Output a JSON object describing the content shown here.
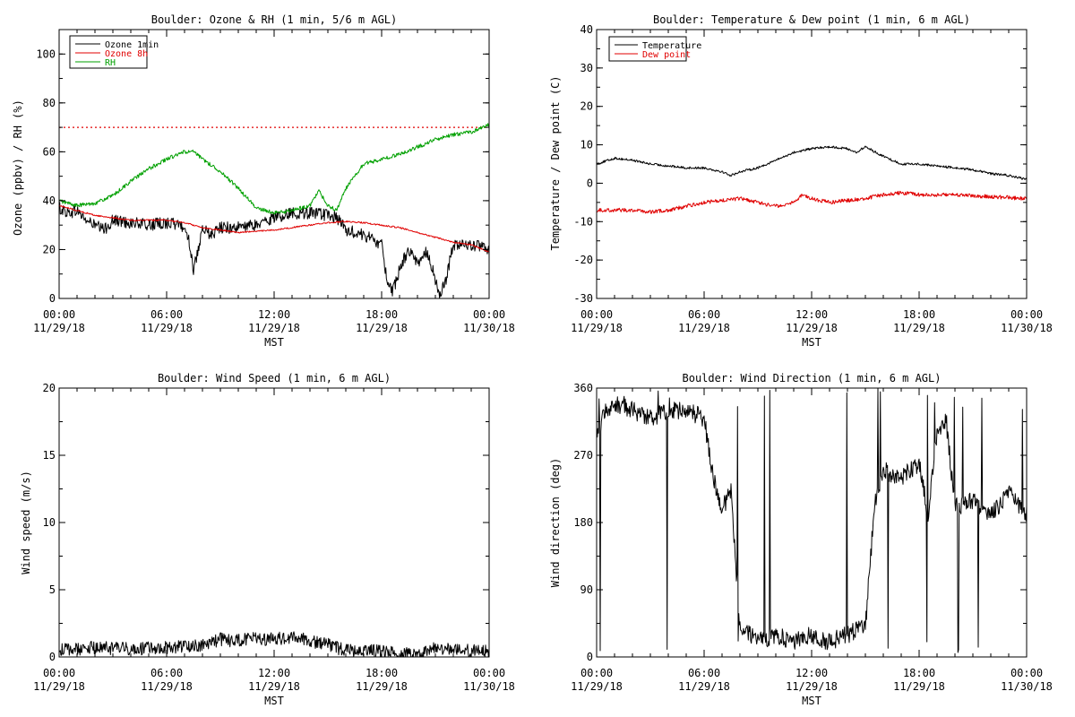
{
  "chart_data": [
    {
      "type": "line",
      "title": "Boulder: Ozone & RH (1 min, 5/6 m AGL)",
      "xlabel": "MST",
      "ylabel": "Ozone (ppbv) / RH (%)",
      "ylim": [
        0,
        110
      ],
      "yticks": [
        0,
        20,
        40,
        60,
        80,
        100
      ],
      "xticks": [
        {
          "hour": 0,
          "time": "00:00",
          "date": "11/29/18"
        },
        {
          "hour": 6,
          "time": "06:00",
          "date": "11/29/18"
        },
        {
          "hour": 12,
          "time": "12:00",
          "date": "11/29/18"
        },
        {
          "hour": 18,
          "time": "18:00",
          "date": "11/29/18"
        },
        {
          "hour": 24,
          "time": "00:00",
          "date": "11/30/18"
        }
      ],
      "xlim_hours": [
        0,
        24
      ],
      "legend": "top-left",
      "reference_line": {
        "y": 70,
        "color": "#e00000",
        "style": "dotted"
      },
      "series": [
        {
          "name": "Ozone 1min",
          "color": "#000000",
          "noise": 2.5,
          "points": [
            [
              0,
              37
            ],
            [
              0.5,
              35
            ],
            [
              1,
              36
            ],
            [
              1.5,
              32
            ],
            [
              2,
              30
            ],
            [
              2.5,
              28
            ],
            [
              3,
              32
            ],
            [
              4,
              31
            ],
            [
              5,
              30
            ],
            [
              6,
              31
            ],
            [
              6.8,
              30
            ],
            [
              7.2,
              26
            ],
            [
              7.5,
              12
            ],
            [
              7.8,
              20
            ],
            [
              8,
              28
            ],
            [
              8.5,
              26
            ],
            [
              9,
              29
            ],
            [
              10,
              29
            ],
            [
              11,
              30
            ],
            [
              12,
              33
            ],
            [
              13,
              35
            ],
            [
              14,
              35
            ],
            [
              15,
              34
            ],
            [
              15.5,
              33
            ],
            [
              16,
              28
            ],
            [
              17,
              26
            ],
            [
              17.5,
              24
            ],
            [
              18,
              22
            ],
            [
              18.3,
              8
            ],
            [
              18.6,
              2
            ],
            [
              19,
              12
            ],
            [
              19.5,
              20
            ],
            [
              20,
              14
            ],
            [
              20.5,
              20
            ],
            [
              21,
              8
            ],
            [
              21.2,
              1
            ],
            [
              21.6,
              8
            ],
            [
              22,
              22
            ],
            [
              23,
              22
            ],
            [
              24,
              20
            ]
          ]
        },
        {
          "name": "Ozone 8h",
          "color": "#e00000",
          "noise": 0.3,
          "points": [
            [
              0,
              38
            ],
            [
              1,
              36
            ],
            [
              2,
              34
            ],
            [
              3,
              33
            ],
            [
              4,
              32
            ],
            [
              6,
              32
            ],
            [
              7,
              31
            ],
            [
              8,
              29
            ],
            [
              9,
              28
            ],
            [
              10,
              27
            ],
            [
              12,
              28
            ],
            [
              14,
              30
            ],
            [
              15,
              31
            ],
            [
              16,
              31.5
            ],
            [
              17,
              31
            ],
            [
              18,
              30
            ],
            [
              19,
              29
            ],
            [
              20,
              27
            ],
            [
              21,
              25
            ],
            [
              22,
              23
            ],
            [
              23,
              22
            ],
            [
              24,
              19
            ]
          ]
        },
        {
          "name": "RH",
          "color": "#00a000",
          "noise": 0.8,
          "points": [
            [
              0,
              40
            ],
            [
              1,
              38
            ],
            [
              2,
              39
            ],
            [
              3,
              42
            ],
            [
              4,
              48
            ],
            [
              5,
              53
            ],
            [
              6,
              57
            ],
            [
              7,
              60
            ],
            [
              7.5,
              60
            ],
            [
              8,
              57
            ],
            [
              9,
              52
            ],
            [
              10,
              45
            ],
            [
              11,
              37
            ],
            [
              12,
              35
            ],
            [
              13,
              36
            ],
            [
              14,
              38
            ],
            [
              14.5,
              44
            ],
            [
              15,
              38
            ],
            [
              15.5,
              36
            ],
            [
              16,
              45
            ],
            [
              17,
              55
            ],
            [
              18,
              57
            ],
            [
              19,
              59
            ],
            [
              20,
              62
            ],
            [
              21,
              65
            ],
            [
              22,
              67
            ],
            [
              23,
              68
            ],
            [
              24,
              71
            ]
          ]
        }
      ]
    },
    {
      "type": "line",
      "title": "Boulder: Temperature & Dew point (1 min, 6 m AGL)",
      "xlabel": "MST",
      "ylabel": "Temperature / Dew point (C)",
      "ylim": [
        -30,
        40
      ],
      "yticks": [
        -30,
        -20,
        -10,
        0,
        10,
        20,
        30,
        40
      ],
      "xticks": [
        {
          "hour": 0,
          "time": "00:00",
          "date": "11/29/18"
        },
        {
          "hour": 6,
          "time": "06:00",
          "date": "11/29/18"
        },
        {
          "hour": 12,
          "time": "12:00",
          "date": "11/29/18"
        },
        {
          "hour": 18,
          "time": "18:00",
          "date": "11/29/18"
        },
        {
          "hour": 24,
          "time": "00:00",
          "date": "11/30/18"
        }
      ],
      "xlim_hours": [
        0,
        24
      ],
      "legend": "top-left",
      "series": [
        {
          "name": "Temperature",
          "color": "#000000",
          "noise": 0.3,
          "points": [
            [
              0,
              5
            ],
            [
              1,
              6.5
            ],
            [
              2,
              6
            ],
            [
              3,
              5
            ],
            [
              4,
              4.5
            ],
            [
              5,
              4
            ],
            [
              6,
              4
            ],
            [
              7,
              3
            ],
            [
              7.5,
              2
            ],
            [
              8,
              3
            ],
            [
              9,
              4
            ],
            [
              10,
              6
            ],
            [
              11,
              8
            ],
            [
              12,
              9
            ],
            [
              13,
              9.5
            ],
            [
              14,
              9
            ],
            [
              14.5,
              8
            ],
            [
              15,
              9.5
            ],
            [
              16,
              7
            ],
            [
              17,
              5
            ],
            [
              18,
              5
            ],
            [
              19,
              4.5
            ],
            [
              20,
              4
            ],
            [
              21,
              3.5
            ],
            [
              22,
              2.5
            ],
            [
              23,
              2
            ],
            [
              24,
              1
            ]
          ]
        },
        {
          "name": "Dew point",
          "color": "#e00000",
          "noise": 0.5,
          "points": [
            [
              0,
              -7
            ],
            [
              2,
              -7
            ],
            [
              3,
              -7.5
            ],
            [
              4,
              -7
            ],
            [
              5,
              -6
            ],
            [
              6,
              -5
            ],
            [
              7,
              -4.5
            ],
            [
              8,
              -4
            ],
            [
              9,
              -5
            ],
            [
              10,
              -6
            ],
            [
              11,
              -5
            ],
            [
              11.5,
              -3
            ],
            [
              12,
              -4
            ],
            [
              13,
              -5
            ],
            [
              14,
              -4.5
            ],
            [
              15,
              -4
            ],
            [
              16,
              -3
            ],
            [
              17,
              -2.5
            ],
            [
              18,
              -3
            ],
            [
              20,
              -3
            ],
            [
              22,
              -3.5
            ],
            [
              24,
              -4
            ]
          ]
        }
      ]
    },
    {
      "type": "line",
      "title": "Boulder: Wind Speed (1 min, 6 m AGL)",
      "xlabel": "MST",
      "ylabel": "Wind speed (m/s)",
      "ylim": [
        0,
        20
      ],
      "yticks": [
        0,
        5,
        10,
        15,
        20
      ],
      "xticks": [
        {
          "hour": 0,
          "time": "00:00",
          "date": "11/29/18"
        },
        {
          "hour": 6,
          "time": "06:00",
          "date": "11/29/18"
        },
        {
          "hour": 12,
          "time": "12:00",
          "date": "11/29/18"
        },
        {
          "hour": 18,
          "time": "18:00",
          "date": "11/29/18"
        },
        {
          "hour": 24,
          "time": "00:00",
          "date": "11/30/18"
        }
      ],
      "xlim_hours": [
        0,
        24
      ],
      "series": [
        {
          "name": "",
          "color": "#000000",
          "noise": 0.5,
          "floor": 0,
          "points": [
            [
              0,
              0.5
            ],
            [
              2,
              0.7
            ],
            [
              4,
              0.6
            ],
            [
              6,
              0.7
            ],
            [
              8,
              0.9
            ],
            [
              9,
              1.3
            ],
            [
              10,
              1.2
            ],
            [
              11,
              1.4
            ],
            [
              12,
              1.3
            ],
            [
              13,
              1.5
            ],
            [
              14,
              1.2
            ],
            [
              15,
              0.9
            ],
            [
              16,
              0.5
            ],
            [
              18,
              0.4
            ],
            [
              19,
              0.3
            ],
            [
              20,
              0.2
            ],
            [
              21,
              0.8
            ],
            [
              22,
              0.5
            ],
            [
              24,
              0.4
            ]
          ]
        }
      ]
    },
    {
      "type": "line",
      "title": "Boulder: Wind Direction (1 min, 6 m AGL)",
      "xlabel": "MST",
      "ylabel": "Wind direction (deg)",
      "ylim": [
        0,
        360
      ],
      "yticks": [
        0,
        90,
        180,
        270,
        360
      ],
      "xticks": [
        {
          "hour": 0,
          "time": "00:00",
          "date": "11/29/18"
        },
        {
          "hour": 6,
          "time": "06:00",
          "date": "11/29/18"
        },
        {
          "hour": 12,
          "time": "12:00",
          "date": "11/29/18"
        },
        {
          "hour": 18,
          "time": "18:00",
          "date": "11/29/18"
        },
        {
          "hour": 24,
          "time": "00:00",
          "date": "11/30/18"
        }
      ],
      "xlim_hours": [
        0,
        24
      ],
      "series": [
        {
          "name": "",
          "color": "#000000",
          "noise": 12,
          "floor": 0,
          "ceil": 360,
          "wrap": true,
          "points": [
            [
              0,
              300
            ],
            [
              0.5,
              330
            ],
            [
              1,
              340
            ],
            [
              2,
              330
            ],
            [
              3,
              320
            ],
            [
              4,
              330
            ],
            [
              5,
              330
            ],
            [
              6,
              320
            ],
            [
              6.5,
              240
            ],
            [
              7,
              200
            ],
            [
              7.5,
              220
            ],
            [
              8,
              40
            ],
            [
              9,
              20
            ],
            [
              10,
              30
            ],
            [
              11,
              20
            ],
            [
              12,
              30
            ],
            [
              13,
              20
            ],
            [
              14,
              30
            ],
            [
              15,
              40
            ],
            [
              15.5,
              200
            ],
            [
              16,
              250
            ],
            [
              17,
              240
            ],
            [
              18,
              260
            ],
            [
              18.5,
              190
            ],
            [
              19,
              300
            ],
            [
              19.5,
              320
            ],
            [
              20,
              200
            ],
            [
              21,
              210
            ],
            [
              22,
              190
            ],
            [
              23,
              220
            ],
            [
              24,
              190
            ]
          ]
        }
      ]
    }
  ]
}
